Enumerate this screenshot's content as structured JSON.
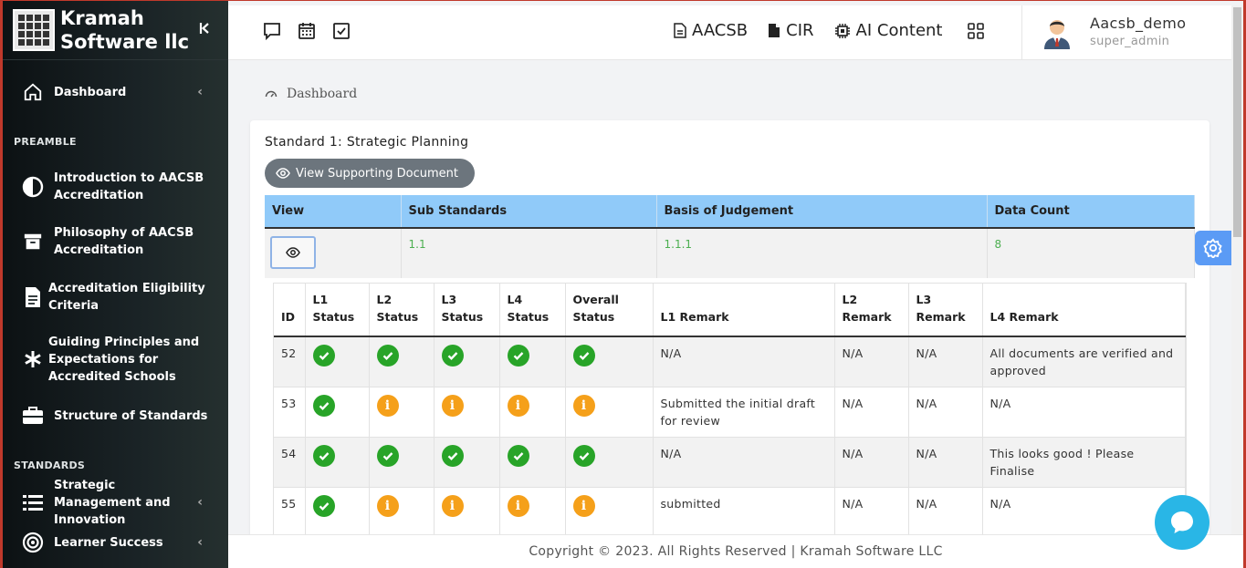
{
  "brand": {
    "line1": "Kramah",
    "line2": "Software llc",
    "collapse_icon": "chevrons-left"
  },
  "sidebar": {
    "dashboard": "Dashboard",
    "preamble_heading": "PREAMBLE",
    "preamble_items": [
      {
        "label": "Introduction to AACSB Accreditation",
        "icon": "half-circle-icon"
      },
      {
        "label": "Philosophy of AACSB Accreditation",
        "icon": "archive-icon"
      },
      {
        "label": "Accreditation Eligibility Criteria",
        "icon": "document-icon"
      },
      {
        "label": "Guiding Principles and Expectations for Accredited Schools",
        "icon": "asterisk-icon"
      },
      {
        "label": "Structure of Standards",
        "icon": "briefcase-icon"
      }
    ],
    "standards_heading": "STANDARDS",
    "standards_items": [
      {
        "label": "Strategic Management and Innovation",
        "icon": "list-icon"
      },
      {
        "label": "Learner Success",
        "icon": "target-icon"
      }
    ]
  },
  "topbar": {
    "links": [
      "AACSB",
      "CIR",
      "AI Content"
    ],
    "user_name": "Aacsb_demo",
    "user_role": "super_admin"
  },
  "breadcrumb": "Dashboard",
  "card": {
    "title": "Standard 1: Strategic Planning",
    "doc_button": "View Supporting Document",
    "outer_headers": [
      "View",
      "Sub Standards",
      "Basis of Judgement",
      "Data Count"
    ],
    "outer_row": {
      "sub_standard": "1.1",
      "basis": "1.1.1",
      "count": "8"
    },
    "inner_headers": [
      "ID",
      "L1 Status",
      "L2 Status",
      "L3 Status",
      "L4 Status",
      "Overall Status",
      "L1 Remark",
      "L2 Remark",
      "L3 Remark",
      "L4 Remark"
    ],
    "rows": [
      {
        "id": "52",
        "status": [
          "ok",
          "ok",
          "ok",
          "ok",
          "ok"
        ],
        "l1": "N/A",
        "l2": "N/A",
        "l3": "N/A",
        "l4": "All documents are verified and approved"
      },
      {
        "id": "53",
        "status": [
          "ok",
          "info",
          "info",
          "info",
          "info"
        ],
        "l1": "Submitted the initial draft for review",
        "l2": "N/A",
        "l3": "N/A",
        "l4": "N/A"
      },
      {
        "id": "54",
        "status": [
          "ok",
          "ok",
          "ok",
          "ok",
          "ok"
        ],
        "l1": "N/A",
        "l2": "N/A",
        "l3": "N/A",
        "l4": "This looks good ! Please Finalise"
      },
      {
        "id": "55",
        "status": [
          "ok",
          "info",
          "info",
          "info",
          "info"
        ],
        "l1": "submitted",
        "l2": "N/A",
        "l3": "N/A",
        "l4": "N/A"
      }
    ]
  },
  "footer": "Copyright © 2023. All Rights Reserved | Kramah Software LLC",
  "colors": {
    "ok": "#28a428",
    "info": "#f5a01a",
    "header_blue": "#90caf9",
    "accent": "#5b9bf5"
  }
}
